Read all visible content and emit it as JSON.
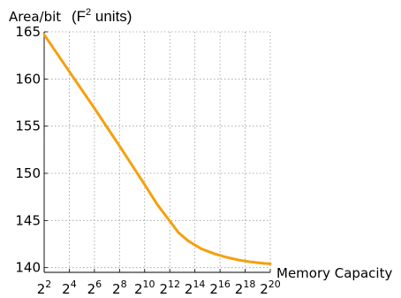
{
  "chart_data": {
    "type": "line",
    "ylabel": "Area/bit",
    "ylabel_units_prefix": "(F",
    "ylabel_units_superscript": "2",
    "ylabel_units_suffix": " units)",
    "xlabel": "Memory Capacity",
    "x_scale": "log2",
    "ylim": [
      139.5,
      165
    ],
    "xlim": [
      2,
      20
    ],
    "grid": true,
    "grid_style": "dotted",
    "line_color": "#f5a00f",
    "y_ticks": [
      {
        "value": 140,
        "label": "140"
      },
      {
        "value": 145,
        "label": "145"
      },
      {
        "value": 150,
        "label": "150"
      },
      {
        "value": 155,
        "label": "155"
      },
      {
        "value": 160,
        "label": "160"
      },
      {
        "value": 165,
        "label": "165"
      }
    ],
    "x_ticks": [
      {
        "exp": 2,
        "base": "2",
        "power": "2"
      },
      {
        "exp": 4,
        "base": "2",
        "power": "4"
      },
      {
        "exp": 6,
        "base": "2",
        "power": "6"
      },
      {
        "exp": 8,
        "base": "2",
        "power": "8"
      },
      {
        "exp": 10,
        "base": "2",
        "power": "10"
      },
      {
        "exp": 12,
        "base": "2",
        "power": "12"
      },
      {
        "exp": 14,
        "base": "2",
        "power": "14"
      },
      {
        "exp": 16,
        "base": "2",
        "power": "16"
      },
      {
        "exp": 18,
        "base": "2",
        "power": "18"
      },
      {
        "exp": 20,
        "base": "2",
        "power": "20"
      }
    ],
    "series": [
      {
        "x_exponents": [
          2,
          4,
          6,
          8,
          10,
          11,
          12.7,
          13.5,
          14.5,
          15.5,
          16.5,
          17.5,
          18.5,
          19.5,
          20
        ],
        "values": [
          164.7,
          160.8,
          156.9,
          152.9,
          148.8,
          146.7,
          143.7,
          142.8,
          142.0,
          141.5,
          141.1,
          140.8,
          140.6,
          140.45,
          140.4
        ]
      }
    ]
  }
}
